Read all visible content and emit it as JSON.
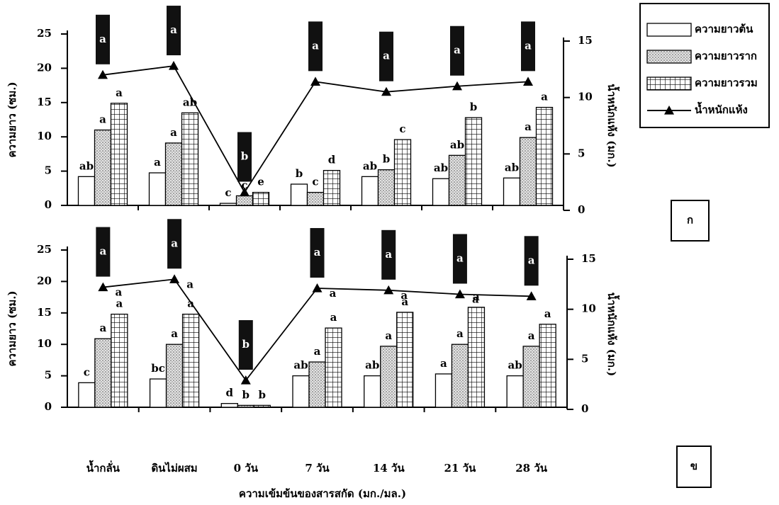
{
  "chart_data": [
    {
      "type": "bar",
      "panel_label": "ก",
      "y_label": "ความยาว (ซม.)",
      "y2_label": "น้ำหนักแห้ง (มก.)",
      "categories": [
        null,
        null,
        null,
        null,
        null,
        null,
        null
      ],
      "legend": "upper right",
      "ylim": [
        0,
        25
      ],
      "yticks": [
        0,
        5,
        10,
        15,
        20,
        25
      ],
      "y2lim": [
        0,
        15
      ],
      "y2ticks": [
        0,
        5,
        10,
        15
      ],
      "series": [
        {
          "name": "ความยาวต้น",
          "color": "#ffffff",
          "pattern": "none",
          "values": [
            4.2,
            4.75,
            0.3,
            3.1,
            4.2,
            3.9,
            4.0
          ],
          "labels": [
            "ab",
            "a",
            "c",
            "b",
            "ab",
            "ab",
            "ab"
          ]
        },
        {
          "name": "ความยาวราก",
          "color": "#d0d0d0",
          "pattern": "dots",
          "values": [
            11.0,
            9.1,
            1.4,
            1.9,
            5.2,
            7.3,
            9.9
          ],
          "labels": [
            "a",
            "a",
            "c",
            "c",
            "b",
            "ab",
            "a"
          ]
        },
        {
          "name": "ความยาวรวม",
          "color": "#ffffff",
          "pattern": "grid",
          "values": [
            14.9,
            13.5,
            1.9,
            5.1,
            9.6,
            12.8,
            14.3
          ],
          "labels": [
            "a",
            "ab",
            "e",
            "d",
            "c",
            "b",
            "a"
          ]
        },
        {
          "name": "น้ำหนักแห้ง",
          "type": "line",
          "axis": "y2",
          "color": "#000000",
          "values": [
            12.0,
            12.8,
            1.6,
            11.4,
            10.5,
            11.0,
            11.4
          ],
          "labels": [
            "a",
            "a",
            "b",
            "a",
            "a",
            "a",
            "a"
          ]
        }
      ]
    },
    {
      "type": "bar",
      "panel_label": "ข",
      "y_label": "ความยาว (ซม.)",
      "y2_label": "น้ำหนักแห้ง (มก.)",
      "x_label": "ความเข้มข้นของสารสกัด (มก./มล.)",
      "categories": [
        "น้ำกลั่น",
        "ดินไม่ผสม",
        "0 วัน",
        "7 วัน",
        "14 วัน",
        "21 วัน",
        "28 วัน"
      ],
      "ylim": [
        0,
        25
      ],
      "yticks": [
        0,
        5,
        10,
        15,
        20,
        25
      ],
      "y2lim": [
        0,
        15
      ],
      "y2ticks": [
        0,
        5,
        10,
        15
      ],
      "series": [
        {
          "name": "ความยาวต้น",
          "color": "#ffffff",
          "pattern": "none",
          "values": [
            3.9,
            4.5,
            0.6,
            5.0,
            5.0,
            5.3,
            5.0
          ],
          "labels": [
            "c",
            "bc",
            "d",
            "ab",
            "ab",
            "a",
            "ab"
          ]
        },
        {
          "name": "ความยาวราก",
          "color": "#d0d0d0",
          "pattern": "dots",
          "values": [
            10.9,
            10.0,
            0.3,
            7.2,
            9.7,
            10.0,
            9.7
          ],
          "labels": [
            "a",
            "a",
            "b",
            "a",
            "a",
            "a",
            "a"
          ]
        },
        {
          "name": "ความยาวรวม",
          "color": "#ffffff",
          "pattern": "grid",
          "values": [
            14.8,
            14.8,
            0.3,
            12.6,
            15.1,
            15.9,
            13.2
          ],
          "labels": [
            "a",
            "a",
            "b",
            "a",
            "a",
            "a",
            "a"
          ]
        },
        {
          "name": "น้ำหนักแห้ง",
          "type": "line",
          "axis": "y2",
          "color": "#000000",
          "values": [
            12.2,
            13.0,
            2.9,
            12.1,
            11.9,
            11.5,
            11.3
          ],
          "labels": [
            "a",
            "a",
            "b",
            "a",
            "a",
            "a",
            "a"
          ],
          "point_labels": [
            "a",
            "a",
            null,
            "a",
            "a",
            "a",
            null
          ]
        }
      ]
    }
  ]
}
